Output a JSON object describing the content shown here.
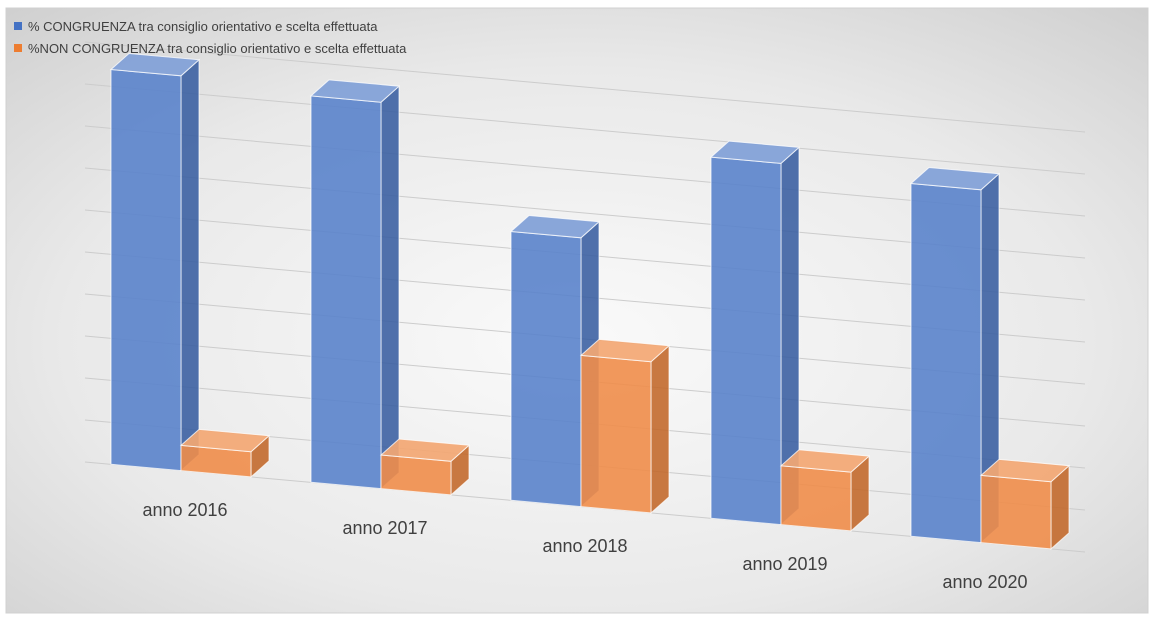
{
  "chart_data": {
    "type": "bar",
    "categories": [
      "anno 2016",
      "anno 2017",
      "anno 2018",
      "anno 2019",
      "anno 2020"
    ],
    "series": [
      {
        "name": "% CONGRUENZA tra consiglio orientativo e scelta effettuata",
        "values": [
          94,
          92,
          64,
          86,
          84
        ],
        "color": "#4472c4"
      },
      {
        "name": "%NON CONGRUENZA tra consiglio orientativo e scelta effettuata",
        "values": [
          6,
          8,
          36,
          14,
          16
        ],
        "color": "#ed7d31"
      }
    ],
    "ylim": [
      0,
      100
    ],
    "grid": true,
    "legend_position": "top-left",
    "style": "3d-perspective"
  }
}
